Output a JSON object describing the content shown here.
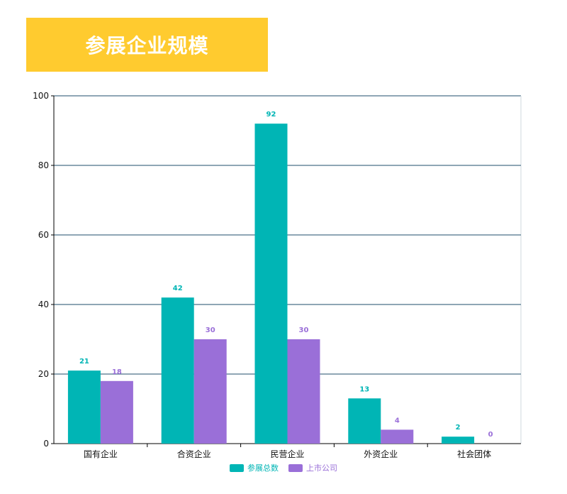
{
  "title": "参展企业规模",
  "colors": {
    "banner": "#ffcb2f",
    "series1": "#00b5b5",
    "series2": "#9a6fd8",
    "grid": "#1f4e6b"
  },
  "chart_data": {
    "type": "bar",
    "categories": [
      "国有企业",
      "合资企业",
      "民营企业",
      "外资企业",
      "社会团体"
    ],
    "series": [
      {
        "name": "参展总数",
        "values": [
          21,
          42,
          92,
          13,
          2
        ]
      },
      {
        "name": "上市公司",
        "values": [
          18,
          30,
          30,
          4,
          0
        ]
      }
    ],
    "ylim": [
      0,
      100
    ],
    "yticks": [
      0,
      20,
      40,
      60,
      80,
      100
    ],
    "grid": true,
    "legend": "bottom-center"
  }
}
